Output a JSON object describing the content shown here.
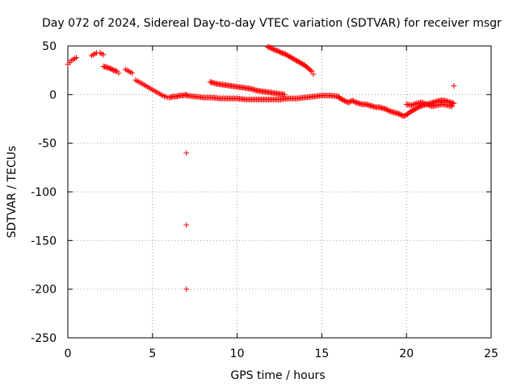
{
  "chart_data": {
    "type": "scatter",
    "title": "Day 072 of 2024, Sidereal Day-to-day VTEC variation (SDTVAR) for receiver msgr",
    "xlabel": "GPS time / hours",
    "ylabel": "SDTVAR / TECUs",
    "xlim": [
      0,
      25
    ],
    "ylim": [
      -250,
      50
    ],
    "xticks": [
      0,
      5,
      10,
      15,
      20,
      25
    ],
    "yticks": [
      -250,
      -200,
      -150,
      -100,
      -50,
      0,
      50
    ],
    "grid": true,
    "marker": "+",
    "color": "#ff0000",
    "series": [
      {
        "name": "SDTVAR",
        "segments": [
          {
            "x": [
              0.0,
              0.1,
              0.2,
              0.3,
              0.4,
              0.5
            ],
            "y": [
              31,
              33,
              35,
              36,
              37,
              38
            ]
          },
          {
            "x": [
              1.4,
              1.5,
              1.6,
              1.7
            ],
            "y": [
              40,
              41,
              42,
              43
            ]
          },
          {
            "x": [
              1.9,
              2.0,
              2.1
            ],
            "y": [
              43,
              42,
              41
            ]
          },
          {
            "x": [
              2.1,
              2.5,
              2.7,
              2.9,
              3.0
            ],
            "y": [
              29,
              27,
              25,
              24,
              22
            ]
          },
          {
            "x": [
              3.4,
              3.5,
              3.6,
              3.7,
              3.8
            ],
            "y": [
              26,
              25,
              24,
              23,
              22
            ]
          },
          {
            "x": [
              4.0,
              4.1,
              4.2,
              4.3,
              4.4,
              4.5,
              4.6,
              4.7,
              4.8,
              4.9,
              5.0,
              5.1,
              5.2,
              5.3,
              5.4,
              5.5,
              5.6,
              5.7,
              5.8,
              5.9,
              6.0,
              6.2,
              6.4,
              6.6,
              6.8,
              7.0
            ],
            "y": [
              15,
              14,
              13,
              12,
              11,
              10,
              9,
              8,
              7,
              6,
              5,
              4,
              3,
              2,
              1,
              0,
              -1,
              -2,
              -2,
              -3,
              -3,
              -2,
              -2,
              -1,
              -1,
              0
            ]
          },
          {
            "x": [
              7.0,
              7.5,
              8.0,
              8.5,
              9.0,
              9.5,
              10.0,
              10.5,
              11.0,
              11.5,
              12.0,
              12.5,
              13.0,
              13.5,
              14.0,
              14.5,
              15.0,
              15.5,
              16.0
            ],
            "y": [
              -1,
              -2,
              -3,
              -3,
              -4,
              -4,
              -4,
              -5,
              -5,
              -5,
              -5,
              -5,
              -4,
              -4,
              -3,
              -2,
              -1,
              -1,
              -2
            ]
          },
          {
            "x": [
              8.4,
              8.8,
              9.2,
              9.6,
              10.0,
              10.4,
              10.8,
              11.2,
              11.6,
              12.0,
              12.4,
              12.8
            ],
            "y": [
              13,
              11,
              10,
              9,
              8,
              7,
              6,
              4,
              3,
              2,
              1,
              0
            ]
          },
          {
            "x": [
              11.8,
              12.0,
              12.2,
              12.4,
              12.6,
              12.8,
              13.0,
              13.2,
              13.4,
              13.6,
              13.8,
              14.0,
              14.2,
              14.4,
              14.5
            ],
            "y": [
              49,
              48,
              46,
              45,
              43,
              42,
              40,
              38,
              36,
              34,
              32,
              30,
              27,
              24,
              21
            ]
          },
          {
            "x": [
              16.0,
              16.2,
              16.4,
              16.6,
              16.8,
              17.0,
              17.2,
              17.4,
              17.6,
              17.8,
              18.0,
              18.2,
              18.4,
              18.6,
              18.8,
              19.0,
              19.2,
              19.4,
              19.6,
              19.8,
              20.0,
              20.2,
              20.4,
              20.6,
              20.8,
              21.0,
              21.2,
              21.4,
              21.6,
              21.8,
              22.0,
              22.2,
              22.4,
              22.6,
              22.8
            ],
            "y": [
              -3,
              -5,
              -7,
              -8,
              -6,
              -8,
              -9,
              -10,
              -10,
              -11,
              -12,
              -13,
              -13,
              -14,
              -15,
              -17,
              -18,
              -19,
              -20,
              -22,
              -21,
              -18,
              -16,
              -14,
              -12,
              -11,
              -10,
              -9,
              -8,
              -7,
              -6,
              -6,
              -7,
              -8,
              -9
            ]
          },
          {
            "x": [
              20.0,
              20.3,
              20.6,
              20.9,
              21.2,
              21.5,
              21.8,
              22.1,
              22.4,
              22.7
            ],
            "y": [
              -10,
              -11,
              -9,
              -8,
              -10,
              -12,
              -11,
              -10,
              -11,
              -12
            ]
          },
          {
            "x": [
              22.8
            ],
            "y": [
              9
            ]
          },
          {
            "x": [
              7.0,
              7.0,
              7.0
            ],
            "y": [
              -60,
              -134,
              -200
            ]
          }
        ]
      }
    ]
  }
}
